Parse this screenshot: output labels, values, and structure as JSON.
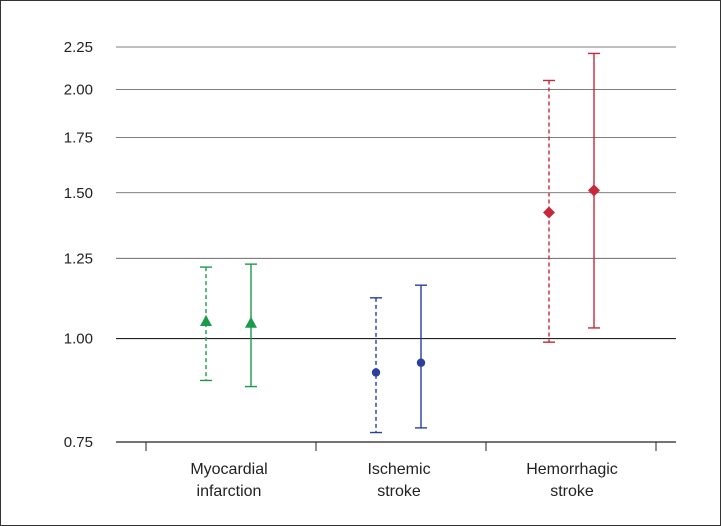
{
  "chart_data": {
    "type": "scatter",
    "title": "",
    "xlabel": "",
    "ylabel": "",
    "y_scale": "log",
    "ylim": [
      0.75,
      2.25
    ],
    "yticks": [
      "0.75",
      "1.00",
      "1.25",
      "1.50",
      "1.75",
      "2.00",
      "2.25"
    ],
    "reference_line": 1.0,
    "grid": "horizontal",
    "legend": "none",
    "categories": [
      {
        "line1": "Myocardial",
        "line2": "infarction"
      },
      {
        "line1": "Ischemic",
        "line2": "stroke"
      },
      {
        "line1": "Hemorrhagic",
        "line2": "stroke"
      }
    ],
    "points": [
      {
        "category": 0,
        "style": "dashed",
        "marker": "triangle",
        "color": "#1a9a4a",
        "estimate": 1.05,
        "lower": 0.89,
        "upper": 1.22
      },
      {
        "category": 0,
        "style": "solid",
        "marker": "triangle",
        "color": "#1a9a4a",
        "estimate": 1.045,
        "lower": 0.875,
        "upper": 1.23
      },
      {
        "category": 1,
        "style": "dashed",
        "marker": "circle",
        "color": "#2b3f9e",
        "estimate": 0.91,
        "lower": 0.77,
        "upper": 1.12
      },
      {
        "category": 1,
        "style": "solid",
        "marker": "circle",
        "color": "#2b3f9e",
        "estimate": 0.935,
        "lower": 0.78,
        "upper": 1.16
      },
      {
        "category": 2,
        "style": "dashed",
        "marker": "diamond",
        "color": "#c8283a",
        "estimate": 1.42,
        "lower": 0.99,
        "upper": 2.05
      },
      {
        "category": 2,
        "style": "solid",
        "marker": "diamond",
        "color": "#c8283a",
        "estimate": 1.51,
        "lower": 1.03,
        "upper": 2.21
      }
    ]
  }
}
